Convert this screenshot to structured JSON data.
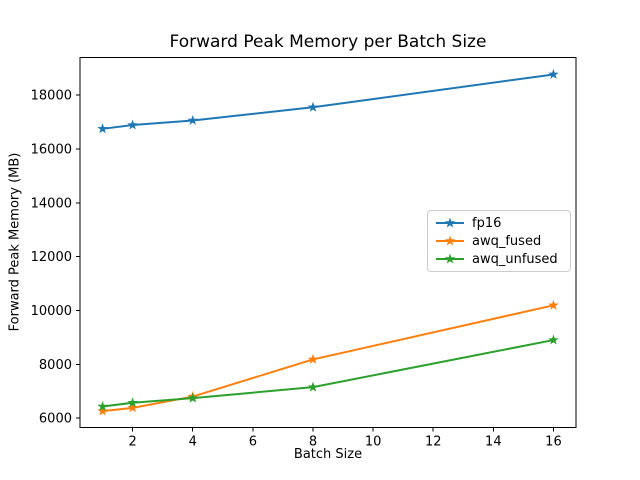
{
  "chart_data": {
    "type": "line",
    "title": "Forward Peak Memory per Batch Size",
    "xlabel": "Batch Size",
    "ylabel": "Forward Peak Memory (MB)",
    "x": [
      1,
      2,
      4,
      8,
      16
    ],
    "series": [
      {
        "name": "fp16",
        "color": "#1f77b4",
        "marker": "star",
        "values": [
          16750,
          16890,
          17060,
          17550,
          18770
        ]
      },
      {
        "name": "awq_fused",
        "color": "#ff7f0e",
        "marker": "star",
        "values": [
          6260,
          6380,
          6800,
          8180,
          10190
        ]
      },
      {
        "name": "awq_unfused",
        "color": "#2ca02c",
        "marker": "star",
        "values": [
          6430,
          6570,
          6740,
          7150,
          8900
        ]
      }
    ],
    "xticks": [
      2,
      4,
      6,
      8,
      10,
      12,
      14,
      16
    ],
    "yticks": [
      6000,
      8000,
      10000,
      12000,
      14000,
      16000,
      18000
    ],
    "xlim": [
      0.25,
      16.75
    ],
    "ylim": [
      5650,
      19400
    ],
    "grid": false,
    "legend_position": "center right",
    "background_color": "#ffffff",
    "axis_color": "#000000"
  }
}
